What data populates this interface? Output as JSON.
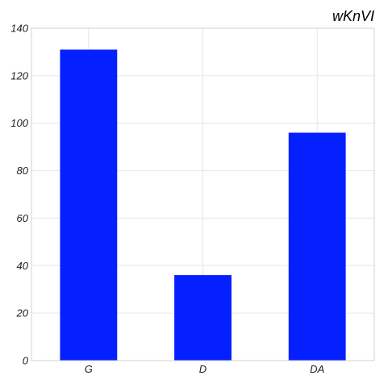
{
  "chart_data": {
    "type": "bar",
    "title": "wKnVI",
    "xlabel": "",
    "ylabel": "",
    "categories": [
      "G",
      "D",
      "DA"
    ],
    "values": [
      131,
      36,
      96
    ],
    "ylim": [
      0,
      140
    ],
    "yticks": [
      0,
      20,
      40,
      60,
      80,
      100,
      120,
      140
    ],
    "grid": true,
    "bar_color": "#0520ff"
  }
}
